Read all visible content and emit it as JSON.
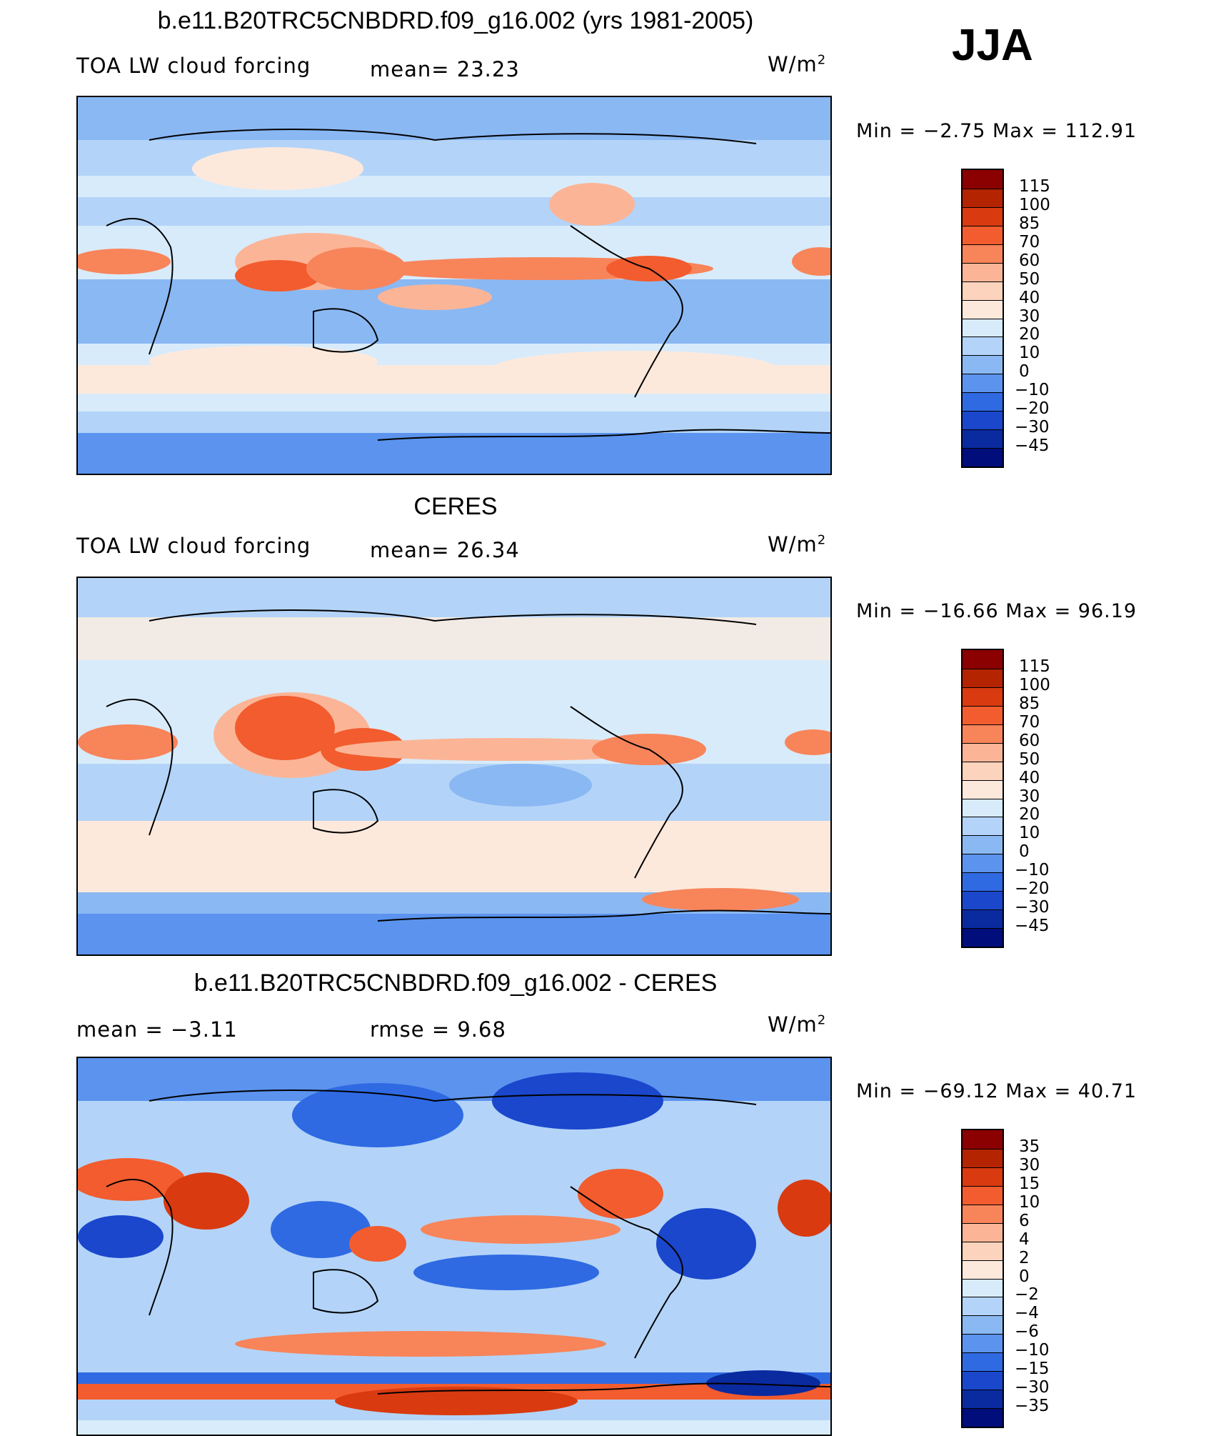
{
  "season": "JJA",
  "panels": [
    {
      "title": "b.e11.B20TRC5CNBDRD.f09_g16.002 (yrs 1981-2005)",
      "left_label": "TOA LW cloud forcing",
      "mid_label": "mean=   23.23",
      "units": "W/m",
      "units_sup": "2",
      "minmax": "Min =   −2.75 Max = 112.91"
    },
    {
      "title": "CERES",
      "left_label": "TOA LW cloud forcing",
      "mid_label": "mean=   26.34",
      "units": "W/m",
      "units_sup": "2",
      "minmax": "Min = −16.66 Max =   96.19"
    },
    {
      "title": "b.e11.B20TRC5CNBDRD.f09_g16.002 - CERES",
      "left_label": "mean =   −3.11",
      "mid_label": "rmse =    9.68",
      "units": "W/m",
      "units_sup": "2",
      "minmax": "Min = −69.12 Max =   40.71"
    }
  ],
  "chart_data": [
    {
      "type": "heatmap",
      "title": "b.e11.B20TRC5CNBDRD.f09_g16.002 (yrs 1981-2005)",
      "variable": "TOA LW cloud forcing",
      "units": "W/m2",
      "mean": 23.23,
      "min": -2.75,
      "max": 112.91,
      "colorbar_levels": [
        "115",
        "100",
        "85",
        "70",
        "60",
        "50",
        "40",
        "30",
        "20",
        "10",
        "0",
        "−10",
        "−20",
        "−30",
        "−45"
      ],
      "colorbar_colors": [
        "#8b0000",
        "#b42400",
        "#d93a10",
        "#f25c2e",
        "#f8845a",
        "#fbb596",
        "#fcd3bd",
        "#fde9dc",
        "#d8ebfb",
        "#b3d4f8",
        "#8ab8f3",
        "#5b93ee",
        "#2f6ae3",
        "#1a47cc",
        "#0a2aa0",
        "#000d7a"
      ]
    },
    {
      "type": "heatmap",
      "title": "CERES",
      "variable": "TOA LW cloud forcing",
      "units": "W/m2",
      "mean": 26.34,
      "min": -16.66,
      "max": 96.19,
      "colorbar_levels": [
        "115",
        "100",
        "85",
        "70",
        "60",
        "50",
        "40",
        "30",
        "20",
        "10",
        "0",
        "−10",
        "−20",
        "−30",
        "−45"
      ],
      "colorbar_colors": [
        "#8b0000",
        "#b42400",
        "#d93a10",
        "#f25c2e",
        "#f8845a",
        "#fbb596",
        "#fcd3bd",
        "#fde9dc",
        "#d8ebfb",
        "#b3d4f8",
        "#8ab8f3",
        "#5b93ee",
        "#2f6ae3",
        "#1a47cc",
        "#0a2aa0",
        "#000d7a"
      ]
    },
    {
      "type": "heatmap",
      "title": "b.e11.B20TRC5CNBDRD.f09_g16.002 - CERES",
      "units": "W/m2",
      "mean": -3.11,
      "rmse": 9.68,
      "min": -69.12,
      "max": 40.71,
      "colorbar_levels": [
        "35",
        "30",
        "15",
        "10",
        "6",
        "4",
        "2",
        "0",
        "−2",
        "−4",
        "−6",
        "−10",
        "−15",
        "−30",
        "−35"
      ],
      "colorbar_colors": [
        "#8b0000",
        "#b42400",
        "#d93a10",
        "#f25c2e",
        "#f8845a",
        "#fbb596",
        "#fcd3bd",
        "#fde9dc",
        "#d8ebfb",
        "#b3d4f8",
        "#8ab8f3",
        "#5b93ee",
        "#2f6ae3",
        "#1a47cc",
        "#0a2aa0",
        "#000d7a"
      ]
    }
  ]
}
